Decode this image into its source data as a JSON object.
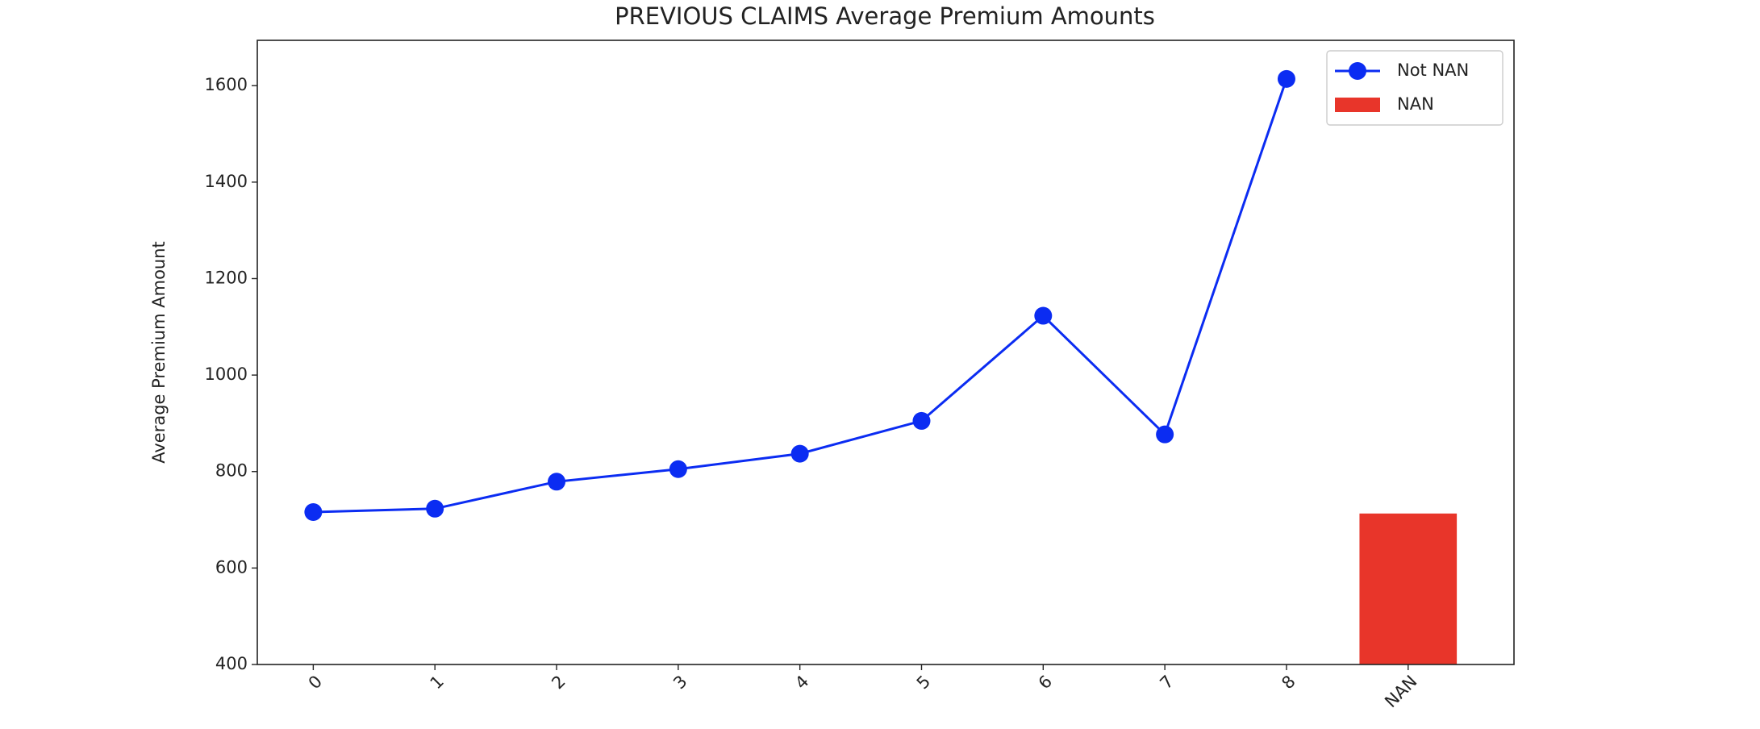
{
  "chart_data": {
    "type": "line",
    "title": "PREVIOUS CLAIMS Average Premium Amounts",
    "y_label": "Average Premium Amount",
    "categories": [
      "0",
      "1",
      "2",
      "3",
      "4",
      "5",
      "6",
      "7",
      "8",
      "NAN"
    ],
    "series": [
      {
        "name": "Not NAN",
        "type": "line",
        "color": "#0b2cf2",
        "values": [
          716,
          723,
          779,
          805,
          837,
          905,
          1123,
          877,
          1614,
          null
        ]
      },
      {
        "name": "NAN",
        "type": "bar",
        "color": "#e8352a",
        "values": [
          null,
          null,
          null,
          null,
          null,
          null,
          null,
          null,
          null,
          713
        ]
      }
    ],
    "ylim": [
      400,
      1694
    ],
    "yticks": [
      400,
      600,
      800,
      1000,
      1200,
      1400,
      1600
    ],
    "legend": "upper right"
  }
}
